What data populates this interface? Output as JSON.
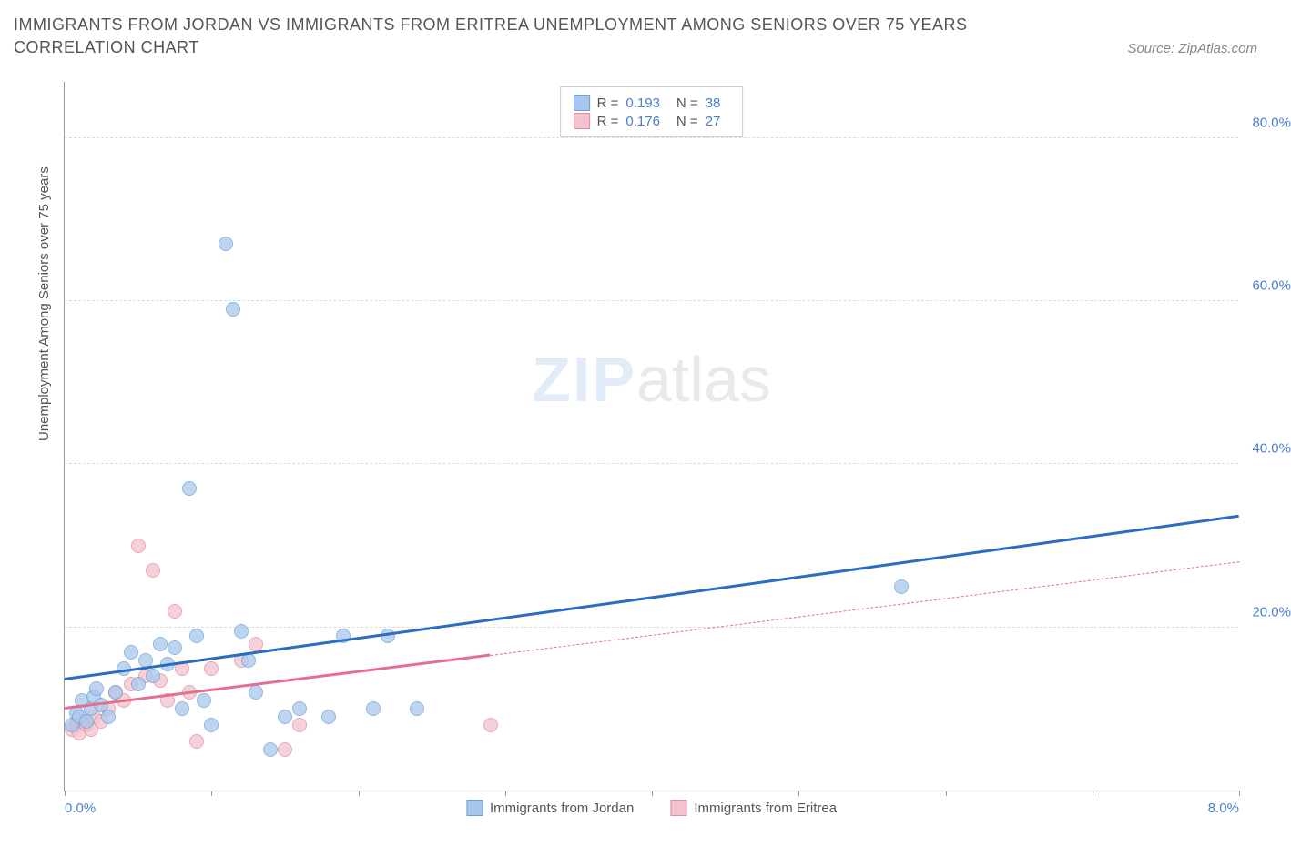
{
  "title": "IMMIGRANTS FROM JORDAN VS IMMIGRANTS FROM ERITREA UNEMPLOYMENT AMONG SENIORS OVER 75 YEARS CORRELATION CHART",
  "source_label": "Source: ZipAtlas.com",
  "ylabel": "Unemployment Among Seniors over 75 years",
  "watermark_bold": "ZIP",
  "watermark_rest": "atlas",
  "chart": {
    "type": "scatter",
    "xlim": [
      0,
      8
    ],
    "ylim": [
      0,
      87
    ],
    "x_ticks": [
      0,
      1,
      2,
      3,
      4,
      5,
      6,
      7,
      8
    ],
    "x_tick_labels": [
      "0.0%",
      "",
      "",
      "",
      "",
      "",
      "",
      "",
      "8.0%"
    ],
    "y_ticks": [
      20,
      40,
      60,
      80
    ],
    "y_tick_labels": [
      "20.0%",
      "40.0%",
      "60.0%",
      "80.0%"
    ],
    "background_color": "#ffffff",
    "grid_color": "#dddddd",
    "axis_color": "#999999",
    "label_color": "#4a7ec9"
  },
  "series": [
    {
      "name": "Immigrants from Jordan",
      "color_fill": "#a9c7ec",
      "color_stroke": "#6a9fd8",
      "R": "0.193",
      "N": "38",
      "trend": {
        "x1": 0,
        "y1": 13.5,
        "x2": 8,
        "y2": 33.5,
        "color": "#2b6cc4",
        "dashed_from": null
      },
      "points": [
        [
          0.05,
          8
        ],
        [
          0.08,
          9.5
        ],
        [
          0.1,
          9
        ],
        [
          0.12,
          11
        ],
        [
          0.15,
          8.5
        ],
        [
          0.18,
          10
        ],
        [
          0.2,
          11.5
        ],
        [
          0.22,
          12.5
        ],
        [
          0.25,
          10.5
        ],
        [
          0.3,
          9
        ],
        [
          0.35,
          12
        ],
        [
          0.4,
          15
        ],
        [
          0.45,
          17
        ],
        [
          0.5,
          13
        ],
        [
          0.55,
          16
        ],
        [
          0.6,
          14
        ],
        [
          0.65,
          18
        ],
        [
          0.7,
          15.5
        ],
        [
          0.75,
          17.5
        ],
        [
          0.8,
          10
        ],
        [
          0.85,
          37
        ],
        [
          0.9,
          19
        ],
        [
          0.95,
          11
        ],
        [
          1.0,
          8
        ],
        [
          1.1,
          67
        ],
        [
          1.15,
          59
        ],
        [
          1.2,
          19.5
        ],
        [
          1.25,
          16
        ],
        [
          1.3,
          12
        ],
        [
          1.4,
          5
        ],
        [
          1.5,
          9
        ],
        [
          1.6,
          10
        ],
        [
          1.8,
          9
        ],
        [
          1.9,
          19
        ],
        [
          2.1,
          10
        ],
        [
          2.2,
          19
        ],
        [
          2.4,
          10
        ],
        [
          5.7,
          25
        ]
      ]
    },
    {
      "name": "Immigrants from Eritrea",
      "color_fill": "#f2c3ce",
      "color_stroke": "#e28aa0",
      "R": "0.176",
      "N": "27",
      "trend": {
        "x1": 0,
        "y1": 10,
        "x2": 8,
        "y2": 28,
        "color": "#e76f8d",
        "dashed_from": 2.9
      },
      "points": [
        [
          0.05,
          7.5
        ],
        [
          0.08,
          8
        ],
        [
          0.1,
          7
        ],
        [
          0.12,
          8.5
        ],
        [
          0.15,
          8
        ],
        [
          0.18,
          7.5
        ],
        [
          0.2,
          9
        ],
        [
          0.25,
          8.5
        ],
        [
          0.3,
          10
        ],
        [
          0.35,
          12
        ],
        [
          0.4,
          11
        ],
        [
          0.45,
          13
        ],
        [
          0.5,
          30
        ],
        [
          0.55,
          14
        ],
        [
          0.6,
          27
        ],
        [
          0.65,
          13.5
        ],
        [
          0.7,
          11
        ],
        [
          0.75,
          22
        ],
        [
          0.8,
          15
        ],
        [
          0.85,
          12
        ],
        [
          0.9,
          6
        ],
        [
          1.0,
          15
        ],
        [
          1.2,
          16
        ],
        [
          1.3,
          18
        ],
        [
          1.5,
          5
        ],
        [
          1.6,
          8
        ],
        [
          2.9,
          8
        ]
      ]
    }
  ],
  "stats_box": {
    "R_label": "R =",
    "N_label": "N ="
  },
  "legend": {
    "items": [
      "Immigrants from Jordan",
      "Immigrants from Eritrea"
    ]
  }
}
